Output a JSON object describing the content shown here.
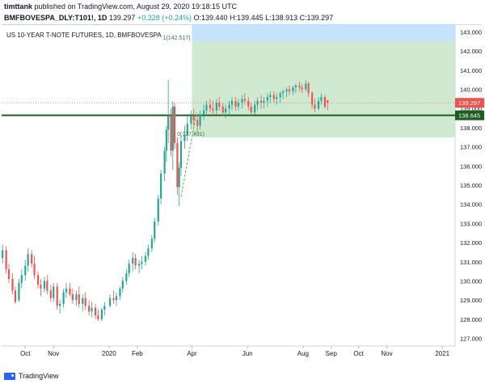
{
  "header": {
    "author": "timttank",
    "published": "published on TradingView.com, August 29, 2020 19:18:15 UTC",
    "symbol": "BMFBOVESPA_DLY:T101!, 1D",
    "last": "139.297",
    "change": "+0.328 (+0.24%)",
    "ohlc": "O:139.440 H:139.445 L:138.913 C:139.297"
  },
  "footer": {
    "brand": "TradingView"
  },
  "colors": {
    "up": "#26a69a",
    "down": "#ef5350",
    "hline": "#1b5e20",
    "zone_green": "#c8e6c9",
    "zone_blue": "#bbdefb",
    "last_price": "#ef5350",
    "axis_text": "#131722"
  },
  "chart_data": {
    "type": "candlestick",
    "title": "US 10-YEAR T-NOTE FUTURES, 1D, BMFBOVESPA",
    "xlim": [
      "2019-09-05",
      "2021-01-15"
    ],
    "ylim": [
      126.6,
      143.4
    ],
    "y_ticks": [
      127,
      128,
      129,
      130,
      131,
      132,
      133,
      134,
      135,
      136,
      137,
      138,
      139,
      140,
      141,
      142,
      143
    ],
    "x_ticks": [
      {
        "label": "Oct",
        "date": "2019-10-01"
      },
      {
        "label": "Nov",
        "date": "2019-11-01"
      },
      {
        "label": "2020",
        "date": "2020-01-01"
      },
      {
        "label": "Feb",
        "date": "2020-02-01"
      },
      {
        "label": "Apr",
        "date": "2020-04-01"
      },
      {
        "label": "Jun",
        "date": "2020-06-01"
      },
      {
        "label": "Aug",
        "date": "2020-08-01"
      },
      {
        "label": "Sep",
        "date": "2020-09-01"
      },
      {
        "label": "Oct",
        "date": "2020-10-01"
      },
      {
        "label": "Nov",
        "date": "2020-11-01"
      },
      {
        "label": "2021",
        "date": "2021-01-01"
      }
    ],
    "last_price": 139.297,
    "horizontal_line": 138.645,
    "zones": [
      {
        "name": "target",
        "from": "2020-04-01",
        "to": "2021-01-15",
        "low": 137.49,
        "high": 142.517,
        "color": "#c8e6c9"
      },
      {
        "name": "beyond",
        "from": "2020-04-01",
        "to": "2021-01-15",
        "low": 142.517,
        "high": 143.4,
        "color": "#bbdefb"
      }
    ],
    "annotations": [
      {
        "text": "1(142.517)",
        "date": "2020-04-01",
        "value": 142.517
      },
      {
        "text": "0(137.491)",
        "date": "2020-03-14",
        "value": 137.491
      }
    ],
    "dashed_trend": [
      {
        "date": "2020-03-20",
        "value": 134.4
      },
      {
        "date": "2020-04-06",
        "value": 138.8
      }
    ],
    "candles": [
      [
        "2019-09-06",
        131.2,
        131.9,
        130.9,
        131.6
      ],
      [
        "2019-09-10",
        131.6,
        131.8,
        130.4,
        130.6
      ],
      [
        "2019-09-13",
        130.6,
        130.9,
        129.9,
        130.1
      ],
      [
        "2019-09-17",
        130.1,
        130.4,
        129.3,
        129.5
      ],
      [
        "2019-09-20",
        129.5,
        129.7,
        128.8,
        128.9
      ],
      [
        "2019-09-24",
        129.0,
        130.1,
        128.9,
        129.9
      ],
      [
        "2019-09-27",
        129.9,
        130.6,
        129.6,
        130.3
      ],
      [
        "2019-10-01",
        130.3,
        131.1,
        130.0,
        130.8
      ],
      [
        "2019-10-04",
        130.8,
        131.7,
        130.5,
        131.4
      ],
      [
        "2019-10-08",
        131.4,
        131.6,
        130.7,
        130.9
      ],
      [
        "2019-10-11",
        130.9,
        131.3,
        130.1,
        130.3
      ],
      [
        "2019-10-15",
        130.3,
        130.5,
        129.6,
        129.8
      ],
      [
        "2019-10-18",
        129.8,
        130.1,
        129.2,
        129.6
      ],
      [
        "2019-10-22",
        129.6,
        130.2,
        129.4,
        130.0
      ],
      [
        "2019-10-25",
        130.0,
        130.3,
        129.3,
        129.5
      ],
      [
        "2019-10-29",
        129.5,
        129.8,
        128.9,
        129.1
      ],
      [
        "2019-11-01",
        129.1,
        129.9,
        128.9,
        129.7
      ],
      [
        "2019-11-05",
        129.7,
        129.9,
        128.5,
        128.7
      ],
      [
        "2019-11-08",
        128.7,
        129.0,
        128.3,
        128.8
      ],
      [
        "2019-11-12",
        128.8,
        129.6,
        128.6,
        129.4
      ],
      [
        "2019-11-15",
        129.4,
        129.9,
        129.1,
        129.6
      ],
      [
        "2019-11-19",
        129.6,
        129.9,
        129.2,
        129.3
      ],
      [
        "2019-11-22",
        129.3,
        129.6,
        128.8,
        129.0
      ],
      [
        "2019-11-26",
        129.0,
        129.5,
        128.7,
        129.3
      ],
      [
        "2019-11-29",
        129.3,
        129.7,
        128.6,
        128.8
      ],
      [
        "2019-12-03",
        128.8,
        129.3,
        128.4,
        129.1
      ],
      [
        "2019-12-06",
        129.1,
        129.4,
        128.5,
        128.7
      ],
      [
        "2019-12-10",
        128.7,
        129.0,
        128.2,
        128.4
      ],
      [
        "2019-12-13",
        128.4,
        128.9,
        128.1,
        128.6
      ],
      [
        "2019-12-17",
        128.6,
        128.8,
        128.0,
        128.2
      ],
      [
        "2019-12-20",
        128.2,
        128.5,
        127.9,
        128.0
      ],
      [
        "2019-12-24",
        128.0,
        128.6,
        127.9,
        128.5
      ],
      [
        "2019-12-27",
        128.5,
        128.9,
        128.2,
        128.7
      ],
      [
        "2020-01-02",
        128.7,
        129.3,
        128.6,
        129.1
      ],
      [
        "2020-01-06",
        129.1,
        129.5,
        128.8,
        129.0
      ],
      [
        "2020-01-09",
        129.0,
        129.4,
        128.7,
        129.2
      ],
      [
        "2020-01-13",
        129.2,
        129.7,
        129.0,
        129.6
      ],
      [
        "2020-01-16",
        129.6,
        130.2,
        129.4,
        130.0
      ],
      [
        "2020-01-20",
        130.0,
        130.6,
        129.8,
        130.4
      ],
      [
        "2020-01-23",
        130.4,
        131.1,
        130.2,
        130.9
      ],
      [
        "2020-01-27",
        130.9,
        131.5,
        130.5,
        131.2
      ],
      [
        "2020-01-30",
        131.2,
        131.4,
        130.6,
        130.8
      ],
      [
        "2020-02-03",
        130.8,
        131.1,
        130.4,
        130.9
      ],
      [
        "2020-02-06",
        130.9,
        131.3,
        130.6,
        131.0
      ],
      [
        "2020-02-10",
        131.0,
        131.5,
        130.8,
        131.3
      ],
      [
        "2020-02-13",
        131.3,
        131.9,
        131.1,
        131.7
      ],
      [
        "2020-02-17",
        131.7,
        132.4,
        131.5,
        132.2
      ],
      [
        "2020-02-20",
        132.2,
        133.3,
        132.0,
        133.1
      ],
      [
        "2020-02-24",
        133.1,
        134.5,
        132.9,
        134.3
      ],
      [
        "2020-02-27",
        134.3,
        135.8,
        134.0,
        135.6
      ],
      [
        "2020-03-02",
        135.6,
        137.0,
        135.2,
        136.8
      ],
      [
        "2020-03-04",
        136.8,
        138.1,
        136.2,
        137.9
      ],
      [
        "2020-03-06",
        137.9,
        140.5,
        137.2,
        138.6
      ],
      [
        "2020-03-09",
        138.6,
        139.0,
        136.5,
        136.8
      ],
      [
        "2020-03-11",
        136.8,
        139.4,
        135.8,
        139.1
      ],
      [
        "2020-03-13",
        139.1,
        139.3,
        136.9,
        137.2
      ],
      [
        "2020-03-16",
        137.2,
        137.5,
        134.5,
        134.9
      ],
      [
        "2020-03-18",
        134.9,
        136.2,
        133.9,
        135.9
      ],
      [
        "2020-03-20",
        135.9,
        137.6,
        135.5,
        137.3
      ],
      [
        "2020-03-24",
        137.3,
        138.1,
        136.9,
        137.6
      ],
      [
        "2020-03-27",
        137.6,
        138.6,
        137.3,
        138.2
      ],
      [
        "2020-03-31",
        138.2,
        138.9,
        137.9,
        138.6
      ],
      [
        "2020-04-03",
        138.6,
        139.0,
        138.1,
        138.4
      ],
      [
        "2020-04-07",
        138.4,
        138.7,
        137.8,
        138.1
      ],
      [
        "2020-04-10",
        138.1,
        138.9,
        137.9,
        138.7
      ],
      [
        "2020-04-14",
        138.7,
        139.2,
        138.4,
        138.9
      ],
      [
        "2020-04-17",
        138.9,
        139.4,
        138.6,
        139.2
      ],
      [
        "2020-04-21",
        139.2,
        139.5,
        138.8,
        139.0
      ],
      [
        "2020-04-24",
        139.0,
        139.4,
        138.6,
        138.9
      ],
      [
        "2020-04-28",
        138.9,
        139.5,
        138.7,
        139.3
      ],
      [
        "2020-05-01",
        139.3,
        139.6,
        138.9,
        139.1
      ],
      [
        "2020-05-05",
        139.1,
        139.3,
        138.6,
        138.8
      ],
      [
        "2020-05-08",
        138.8,
        139.2,
        138.5,
        139.0
      ],
      [
        "2020-05-12",
        139.0,
        139.4,
        138.7,
        139.2
      ],
      [
        "2020-05-15",
        139.2,
        139.6,
        138.9,
        139.4
      ],
      [
        "2020-05-19",
        139.4,
        139.6,
        138.9,
        139.1
      ],
      [
        "2020-05-22",
        139.1,
        139.5,
        138.9,
        139.3
      ],
      [
        "2020-05-26",
        139.3,
        139.7,
        139.0,
        139.5
      ],
      [
        "2020-05-29",
        139.5,
        139.8,
        139.2,
        139.4
      ],
      [
        "2020-06-02",
        139.4,
        139.6,
        138.9,
        139.1
      ],
      [
        "2020-06-05",
        139.1,
        139.3,
        138.6,
        138.8
      ],
      [
        "2020-06-09",
        138.8,
        139.4,
        138.7,
        139.2
      ],
      [
        "2020-06-12",
        139.2,
        139.6,
        138.9,
        139.4
      ],
      [
        "2020-06-16",
        139.4,
        139.7,
        139.0,
        139.3
      ],
      [
        "2020-06-19",
        139.3,
        139.6,
        139.0,
        139.4
      ],
      [
        "2020-06-23",
        139.4,
        139.8,
        139.1,
        139.6
      ],
      [
        "2020-06-26",
        139.6,
        139.9,
        139.3,
        139.7
      ],
      [
        "2020-06-30",
        139.7,
        139.9,
        139.3,
        139.5
      ],
      [
        "2020-07-03",
        139.5,
        139.8,
        139.2,
        139.6
      ],
      [
        "2020-07-07",
        139.6,
        139.9,
        139.3,
        139.8
      ],
      [
        "2020-07-10",
        139.8,
        140.0,
        139.5,
        139.9
      ],
      [
        "2020-07-14",
        139.9,
        140.1,
        139.6,
        140.0
      ],
      [
        "2020-07-17",
        140.0,
        140.2,
        139.7,
        139.9
      ],
      [
        "2020-07-21",
        139.9,
        140.2,
        139.7,
        140.1
      ],
      [
        "2020-07-24",
        140.1,
        140.3,
        139.8,
        140.2
      ],
      [
        "2020-07-28",
        140.2,
        140.4,
        139.9,
        140.1
      ],
      [
        "2020-07-31",
        140.1,
        140.3,
        139.8,
        140.0
      ],
      [
        "2020-08-04",
        140.0,
        140.5,
        139.9,
        140.3
      ],
      [
        "2020-08-07",
        140.3,
        140.4,
        139.6,
        139.8
      ],
      [
        "2020-08-11",
        139.8,
        139.9,
        139.0,
        139.2
      ],
      [
        "2020-08-14",
        139.2,
        139.5,
        138.8,
        139.0
      ],
      [
        "2020-08-18",
        139.0,
        139.6,
        138.9,
        139.4
      ],
      [
        "2020-08-21",
        139.4,
        139.8,
        139.2,
        139.6
      ],
      [
        "2020-08-25",
        139.6,
        139.7,
        139.0,
        139.1
      ],
      [
        "2020-08-28",
        139.44,
        139.445,
        138.913,
        139.297
      ]
    ]
  }
}
